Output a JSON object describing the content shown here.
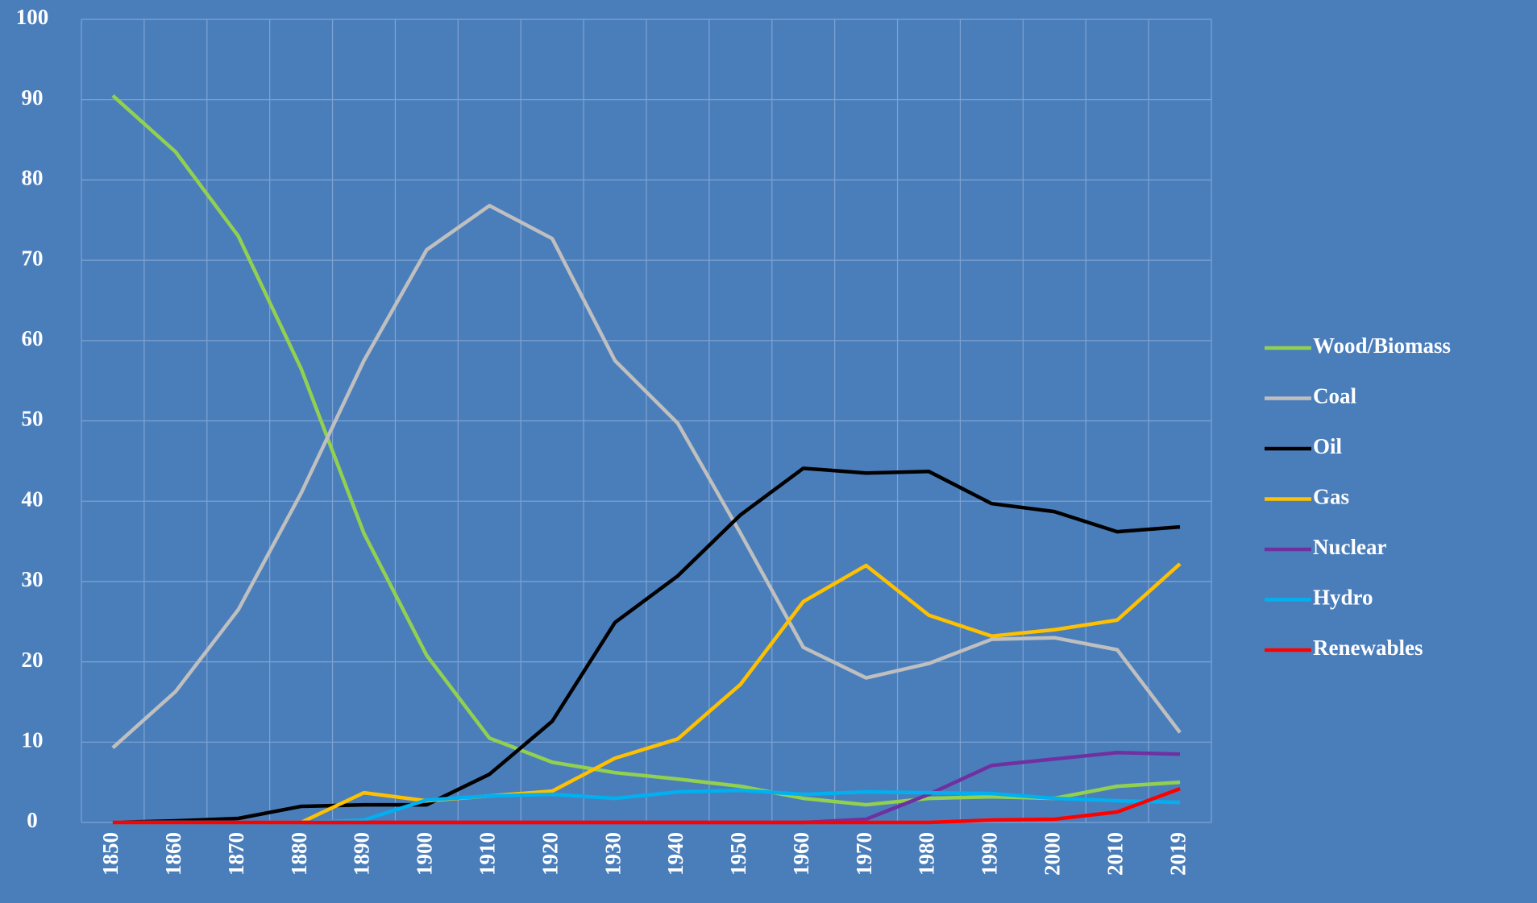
{
  "chart_data": {
    "type": "line",
    "categories": [
      "1850",
      "1860",
      "1870",
      "1880",
      "1890",
      "1900",
      "1910",
      "1920",
      "1930",
      "1940",
      "1950",
      "1960",
      "1970",
      "1980",
      "1990",
      "2000",
      "2010",
      "2019"
    ],
    "series": [
      {
        "name": "Wood/Biomass",
        "color": "#92d050",
        "values": [
          90.5,
          83.5,
          73,
          56.5,
          36,
          20.8,
          10.5,
          7.5,
          6.2,
          5.4,
          4.5,
          3,
          2.2,
          3,
          3.2,
          3,
          4.5,
          5
        ]
      },
      {
        "name": "Coal",
        "color": "#bfbfbf",
        "values": [
          9.3,
          16.3,
          26.5,
          41,
          57.5,
          71.3,
          76.8,
          72.7,
          57.5,
          49.7,
          36,
          21.8,
          18,
          19.8,
          22.8,
          23,
          21.5,
          11.2
        ]
      },
      {
        "name": "Oil",
        "color": "#000000",
        "values": [
          0,
          0.2,
          0.5,
          2,
          2.2,
          2.2,
          6,
          12.6,
          24.9,
          30.7,
          38.3,
          44.1,
          43.5,
          43.7,
          39.7,
          38.7,
          36.2,
          36.8
        ]
      },
      {
        "name": "Gas",
        "color": "#ffc000",
        "values": [
          0,
          0,
          0,
          0,
          3.7,
          2.7,
          3.3,
          3.9,
          8,
          10.4,
          17.2,
          27.5,
          32,
          25.8,
          23.2,
          24,
          25.2,
          32.2
        ]
      },
      {
        "name": "Nuclear",
        "color": "#7030a0",
        "values": [
          0,
          0,
          0,
          0,
          0,
          0,
          0,
          0,
          0,
          0,
          0,
          0,
          0.4,
          3.5,
          7.1,
          7.9,
          8.7,
          8.5
        ]
      },
      {
        "name": "Hydro",
        "color": "#00b0f0",
        "values": [
          0,
          0,
          0,
          0,
          0.3,
          2.8,
          3.3,
          3.5,
          3,
          3.8,
          4,
          3.5,
          3.8,
          3.7,
          3.6,
          3,
          2.7,
          2.5
        ]
      },
      {
        "name": "Renewables",
        "color": "#ff0000",
        "values": [
          0,
          0,
          0,
          0,
          0,
          0,
          0,
          0,
          0,
          0,
          0,
          0,
          0,
          0,
          0.3,
          0.4,
          1.3,
          4.2
        ]
      }
    ],
    "ylim": [
      0,
      100
    ],
    "yticks": [
      0,
      10,
      20,
      30,
      40,
      50,
      60,
      70,
      80,
      90,
      100
    ],
    "grid": true,
    "legend": "right"
  }
}
